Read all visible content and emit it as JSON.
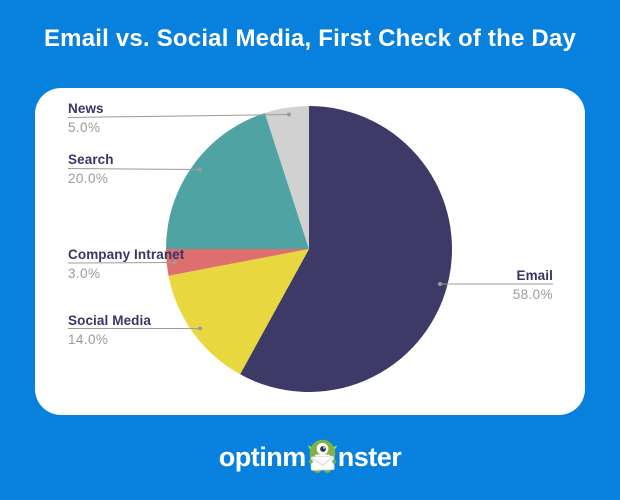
{
  "title": "Email vs. Social Media, First Check of the Day",
  "brand": {
    "logo_name": "optinmonster",
    "logo_text_left": "optinm",
    "logo_text_right": "nster"
  },
  "colors": {
    "background": "#0881de",
    "card": "#ffffff",
    "label_text": "#3a3564",
    "percent_text": "#9b9b9b",
    "leader_line": "#9b9b9b",
    "monster_green": "#7cb342"
  },
  "chart_data": {
    "type": "pie",
    "title": "Email vs. Social Media, First Check of the Day",
    "unit": "%",
    "start_angle": "top",
    "direction": "clockwise",
    "legend_position": "callout-labels",
    "labels": [
      "Email",
      "Social Media",
      "Company Intranet",
      "Search",
      "News"
    ],
    "values": [
      58.0,
      14.0,
      3.0,
      20.0,
      5.0
    ],
    "segments": [
      {
        "label": "Email",
        "value": 58.0,
        "display": "58.0%",
        "color": "#3d3a67"
      },
      {
        "label": "Social Media",
        "value": 14.0,
        "display": "14.0%",
        "color": "#e8d73e"
      },
      {
        "label": "Company Intranet",
        "value": 3.0,
        "display": "3.0%",
        "color": "#dd6f6e"
      },
      {
        "label": "Search",
        "value": 20.0,
        "display": "20.0%",
        "color": "#4fa3a2"
      },
      {
        "label": "News",
        "value": 5.0,
        "display": "5.0%",
        "color": "#d1d1d1"
      }
    ]
  }
}
